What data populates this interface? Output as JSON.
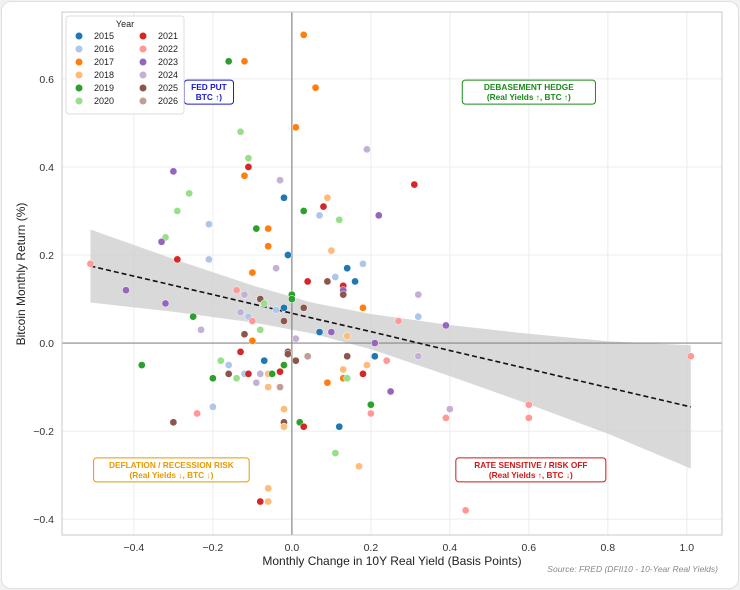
{
  "chart_data": {
    "type": "scatter",
    "title": "",
    "xlabel": "Monthly Change in 10Y Real Yield (Basis Points)",
    "ylabel": "Bitcoin Monthly Return (%)",
    "xlim": [
      -0.582,
      1.089
    ],
    "ylim": [
      -0.436,
      0.752
    ],
    "xticks": [
      -0.4,
      -0.2,
      0.0,
      0.2,
      0.4,
      0.6,
      0.8,
      1.0
    ],
    "xtick_labels": [
      "−0.4",
      "−0.2",
      "0.0",
      "0.2",
      "0.4",
      "0.6",
      "0.8",
      "1.0"
    ],
    "yticks": [
      -0.4,
      -0.2,
      0.0,
      0.2,
      0.4,
      0.6
    ],
    "ytick_labels": [
      "−0.4",
      "−0.2",
      "0.0",
      "0.2",
      "0.4",
      "0.6"
    ],
    "grid": true,
    "source": "Source: FRED (DFII10 - 10-Year Real Yields)",
    "legend": {
      "title": "Year",
      "placement": "top-left",
      "entries": [
        {
          "label": "2015",
          "color": "#1f77b4"
        },
        {
          "label": "2016",
          "color": "#aec7e8"
        },
        {
          "label": "2017",
          "color": "#ff7f0e"
        },
        {
          "label": "2018",
          "color": "#ffbb78"
        },
        {
          "label": "2019",
          "color": "#2ca02c"
        },
        {
          "label": "2020",
          "color": "#98df8a"
        },
        {
          "label": "2021",
          "color": "#d62728"
        },
        {
          "label": "2022",
          "color": "#ff9896"
        },
        {
          "label": "2023",
          "color": "#9467bd"
        },
        {
          "label": "2024",
          "color": "#c5b0d5"
        },
        {
          "label": "2025",
          "color": "#8c564b"
        },
        {
          "label": "2026",
          "color": "#c49c94"
        }
      ]
    },
    "points": [
      [
        0.03,
        0.7,
        "2017"
      ],
      [
        -0.16,
        0.64,
        "2019"
      ],
      [
        -0.12,
        0.64,
        "2017"
      ],
      [
        0.06,
        0.58,
        "2017"
      ],
      [
        0.01,
        0.49,
        "2017"
      ],
      [
        -0.13,
        0.48,
        "2020"
      ],
      [
        -0.11,
        0.42,
        "2020"
      ],
      [
        -0.11,
        0.4,
        "2021"
      ],
      [
        -0.12,
        0.38,
        "2017"
      ],
      [
        -0.3,
        0.39,
        "2023"
      ],
      [
        0.19,
        0.44,
        "2024"
      ],
      [
        0.31,
        0.36,
        "2021"
      ],
      [
        -0.26,
        0.34,
        "2020"
      ],
      [
        -0.03,
        0.37,
        "2024"
      ],
      [
        -0.02,
        0.33,
        "2015"
      ],
      [
        -0.29,
        0.3,
        "2020"
      ],
      [
        0.09,
        0.33,
        "2018"
      ],
      [
        0.03,
        0.3,
        "2019"
      ],
      [
        0.08,
        0.31,
        "2021"
      ],
      [
        0.07,
        0.29,
        "2016"
      ],
      [
        0.12,
        0.28,
        "2020"
      ],
      [
        0.22,
        0.29,
        "2023"
      ],
      [
        -0.21,
        0.27,
        "2016"
      ],
      [
        -0.09,
        0.26,
        "2019"
      ],
      [
        -0.06,
        0.26,
        "2017"
      ],
      [
        -0.32,
        0.24,
        "2020"
      ],
      [
        -0.33,
        0.23,
        "2023"
      ],
      [
        -0.06,
        0.22,
        "2017"
      ],
      [
        0.1,
        0.21,
        "2018"
      ],
      [
        -0.01,
        0.2,
        "2015"
      ],
      [
        -0.29,
        0.19,
        "2021"
      ],
      [
        -0.21,
        0.19,
        "2016"
      ],
      [
        -0.51,
        0.18,
        "2022"
      ],
      [
        -0.1,
        0.16,
        "2017"
      ],
      [
        -0.04,
        0.17,
        "2024"
      ],
      [
        0.18,
        0.18,
        "2016"
      ],
      [
        0.14,
        0.17,
        "2015"
      ],
      [
        0.04,
        0.14,
        "2021"
      ],
      [
        0.09,
        0.14,
        "2025"
      ],
      [
        0.11,
        0.15,
        "2016"
      ],
      [
        0.13,
        0.13,
        "2021"
      ],
      [
        0.16,
        0.14,
        "2015"
      ],
      [
        0.13,
        0.12,
        "2023"
      ],
      [
        0.13,
        0.11,
        "2025"
      ],
      [
        0.0,
        0.11,
        "2019"
      ],
      [
        0.0,
        0.1,
        "2019"
      ],
      [
        -0.42,
        0.12,
        "2023"
      ],
      [
        -0.32,
        0.09,
        "2023"
      ],
      [
        -0.25,
        0.06,
        "2019"
      ],
      [
        -0.23,
        0.03,
        "2024"
      ],
      [
        -0.14,
        0.12,
        "2022"
      ],
      [
        -0.12,
        0.11,
        "2024"
      ],
      [
        -0.08,
        0.1,
        "2025"
      ],
      [
        -0.07,
        0.09,
        "2020"
      ],
      [
        -0.02,
        0.08,
        "2015"
      ],
      [
        -0.04,
        0.075,
        "2016"
      ],
      [
        -0.13,
        0.07,
        "2024"
      ],
      [
        -0.11,
        0.06,
        "2016"
      ],
      [
        -0.1,
        0.05,
        "2022"
      ],
      [
        -0.02,
        0.05,
        "2025"
      ],
      [
        -0.12,
        0.02,
        "2025"
      ],
      [
        -0.08,
        0.03,
        "2020"
      ],
      [
        0.01,
        0.01,
        "2024"
      ],
      [
        0.03,
        0.08,
        "2025"
      ],
      [
        0.18,
        0.08,
        "2017"
      ],
      [
        0.32,
        0.11,
        "2024"
      ],
      [
        0.32,
        0.06,
        "2016"
      ],
      [
        0.27,
        0.05,
        "2022"
      ],
      [
        0.39,
        0.04,
        "2023"
      ],
      [
        0.07,
        0.025,
        "2015"
      ],
      [
        0.1,
        0.025,
        "2023"
      ],
      [
        0.14,
        0.016,
        "2018"
      ],
      [
        0.21,
        0.0,
        "2023"
      ],
      [
        -0.1,
        0.005,
        "2017"
      ],
      [
        0.21,
        -0.03,
        "2015"
      ],
      [
        0.24,
        -0.04,
        "2022"
      ],
      [
        0.32,
        -0.03,
        "2024"
      ],
      [
        0.14,
        -0.03,
        "2025"
      ],
      [
        0.19,
        -0.05,
        "2018"
      ],
      [
        0.04,
        -0.03,
        "2026"
      ],
      [
        -0.01,
        -0.02,
        "2025"
      ],
      [
        0.01,
        -0.04,
        "2025"
      ],
      [
        0.13,
        -0.06,
        "2018"
      ],
      [
        -0.02,
        -0.05,
        "2019"
      ],
      [
        -0.38,
        -0.05,
        "2019"
      ],
      [
        -0.18,
        -0.04,
        "2020"
      ],
      [
        -0.13,
        -0.02,
        "2021"
      ],
      [
        -0.16,
        -0.05,
        "2016"
      ],
      [
        -0.07,
        -0.04,
        "2015"
      ],
      [
        -0.01,
        -0.025,
        "2025"
      ],
      [
        -0.2,
        -0.08,
        "2019"
      ],
      [
        -0.16,
        -0.07,
        "2025"
      ],
      [
        -0.14,
        -0.08,
        "2020"
      ],
      [
        -0.12,
        -0.07,
        "2016"
      ],
      [
        -0.11,
        -0.07,
        "2021"
      ],
      [
        -0.08,
        -0.07,
        "2024"
      ],
      [
        -0.09,
        -0.09,
        "2024"
      ],
      [
        -0.06,
        -0.07,
        "2018"
      ],
      [
        -0.05,
        -0.07,
        "2019"
      ],
      [
        -0.03,
        -0.065,
        "2021"
      ],
      [
        -0.06,
        -0.1,
        "2018"
      ],
      [
        -0.03,
        -0.1,
        "2026"
      ],
      [
        0.13,
        -0.06,
        "2018"
      ],
      [
        0.13,
        -0.08,
        "2017"
      ],
      [
        0.14,
        -0.08,
        "2020"
      ],
      [
        0.09,
        -0.09,
        "2017"
      ],
      [
        0.18,
        -0.07,
        "2021"
      ],
      [
        -0.2,
        -0.145,
        "2016"
      ],
      [
        -0.24,
        -0.16,
        "2022"
      ],
      [
        -0.3,
        -0.18,
        "2025"
      ],
      [
        -0.02,
        -0.15,
        "2018"
      ],
      [
        -0.02,
        -0.18,
        "2025"
      ],
      [
        -0.02,
        -0.19,
        "2018"
      ],
      [
        0.02,
        -0.18,
        "2019"
      ],
      [
        0.03,
        -0.19,
        "2021"
      ],
      [
        0.12,
        -0.19,
        "2015"
      ],
      [
        0.2,
        -0.14,
        "2019"
      ],
      [
        0.2,
        -0.16,
        "2022"
      ],
      [
        0.25,
        -0.11,
        "2023"
      ],
      [
        0.11,
        -0.25,
        "2020"
      ],
      [
        0.17,
        -0.28,
        "2018"
      ],
      [
        0.4,
        -0.15,
        "2024"
      ],
      [
        0.39,
        -0.17,
        "2022"
      ],
      [
        0.6,
        -0.14,
        "2022"
      ],
      [
        0.6,
        -0.17,
        "2022"
      ],
      [
        0.44,
        -0.38,
        "2022"
      ],
      [
        -0.06,
        -0.33,
        "2018"
      ],
      [
        -0.06,
        -0.36,
        "2018"
      ],
      [
        -0.08,
        -0.36,
        "2021"
      ],
      [
        1.01,
        -0.03,
        "2022"
      ]
    ],
    "regression": {
      "x": [
        -0.51,
        -0.3,
        -0.1,
        0.05,
        0.2,
        0.4,
        0.6,
        0.8,
        1.01
      ],
      "y": [
        0.175,
        0.131,
        0.089,
        0.057,
        0.026,
        -0.017,
        -0.059,
        -0.101,
        -0.145
      ],
      "ci_lower": [
        0.092,
        0.071,
        0.047,
        0.022,
        -0.014,
        -0.075,
        -0.139,
        -0.206,
        -0.285
      ],
      "ci_upper": [
        0.258,
        0.191,
        0.131,
        0.092,
        0.066,
        0.041,
        0.021,
        0.004,
        -0.005
      ]
    },
    "annotations": [
      {
        "lines": [
          "DEBASEMENT HEDGE",
          "(Real Yields ↑, BTC ↑)"
        ],
        "color": "#1a8a1a",
        "x": 0.6,
        "y": 0.57
      },
      {
        "lines": [
          "FED PUT",
          "BTC ↑)"
        ],
        "color": "#1a1acc",
        "x": -0.21,
        "y": 0.57
      },
      {
        "lines": [
          "DEFLATION / RECESSION RISK",
          "(Real Yields ↓, BTC ↓)"
        ],
        "color": "#e69a00",
        "x": -0.305,
        "y": -0.288
      },
      {
        "lines": [
          "RATE SENSITIVE / RISK OFF",
          "(Real Yields ↑, BTC ↓)"
        ],
        "color": "#d01818",
        "x": 0.605,
        "y": -0.288
      }
    ]
  }
}
